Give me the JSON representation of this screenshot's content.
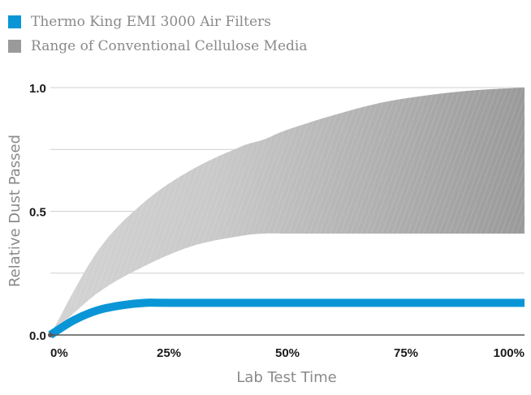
{
  "chart_data": {
    "type": "area",
    "xlabel": "Lab Test Time",
    "ylabel": "Relative Dust Passed",
    "x_ticks": [
      "0%",
      "25%",
      "50%",
      "75%",
      "100%"
    ],
    "y_ticks": [
      "0.0",
      "0.5",
      "1.0"
    ],
    "xlim": [
      0,
      100
    ],
    "ylim": [
      0,
      1.0
    ],
    "grid": "horizontal",
    "legend_position": "top-left",
    "series": [
      {
        "name": "Thermo King EMI 3000 Air Filters",
        "kind": "line",
        "color": "#0a96d6",
        "x": [
          0,
          5,
          10,
          15,
          20,
          25,
          50,
          75,
          100
        ],
        "values": [
          0,
          0.06,
          0.1,
          0.12,
          0.13,
          0.13,
          0.13,
          0.13,
          0.13
        ]
      },
      {
        "name": "Range of Conventional Cellulose Media",
        "kind": "band",
        "color": "#9a9a9a",
        "x": [
          0,
          10,
          20,
          30,
          40,
          45,
          50,
          60,
          70,
          80,
          90,
          100
        ],
        "upper": [
          0,
          0.34,
          0.54,
          0.67,
          0.76,
          0.79,
          0.83,
          0.89,
          0.94,
          0.97,
          0.99,
          1.0
        ],
        "lower": [
          0,
          0.17,
          0.28,
          0.36,
          0.4,
          0.41,
          0.41,
          0.41,
          0.41,
          0.41,
          0.41,
          0.41
        ]
      }
    ]
  }
}
